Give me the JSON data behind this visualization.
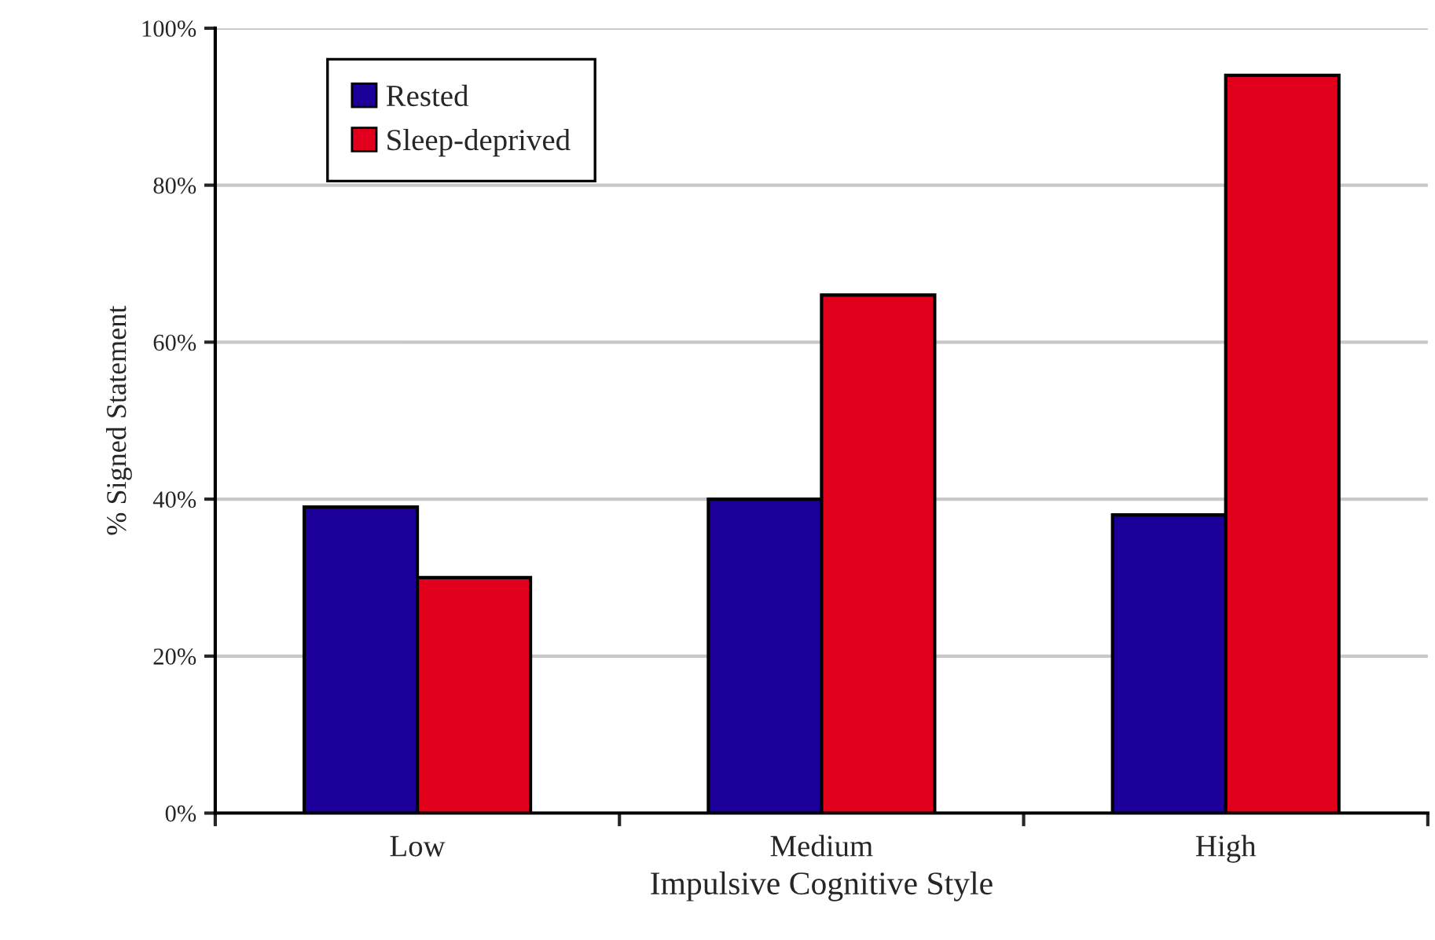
{
  "chart_data": {
    "type": "bar",
    "xlabel": "Impulsive Cognitive Style",
    "ylabel": "% Signed Statement",
    "categories": [
      "Low",
      "Medium",
      "High"
    ],
    "series": [
      {
        "name": "Rested",
        "color": "#1c0099",
        "values": [
          39,
          40,
          38
        ]
      },
      {
        "name": "Sleep-deprived",
        "color": "#e0001b",
        "values": [
          30,
          66,
          94
        ]
      }
    ],
    "ylim": [
      0,
      100
    ],
    "yticks": [
      {
        "value": 0,
        "label": "0%"
      },
      {
        "value": 20,
        "label": "20%"
      },
      {
        "value": 40,
        "label": "40%"
      },
      {
        "value": 60,
        "label": "60%"
      },
      {
        "value": 80,
        "label": "80%"
      },
      {
        "value": 100,
        "label": "100%"
      }
    ],
    "grid": "y",
    "legend": "top left"
  }
}
